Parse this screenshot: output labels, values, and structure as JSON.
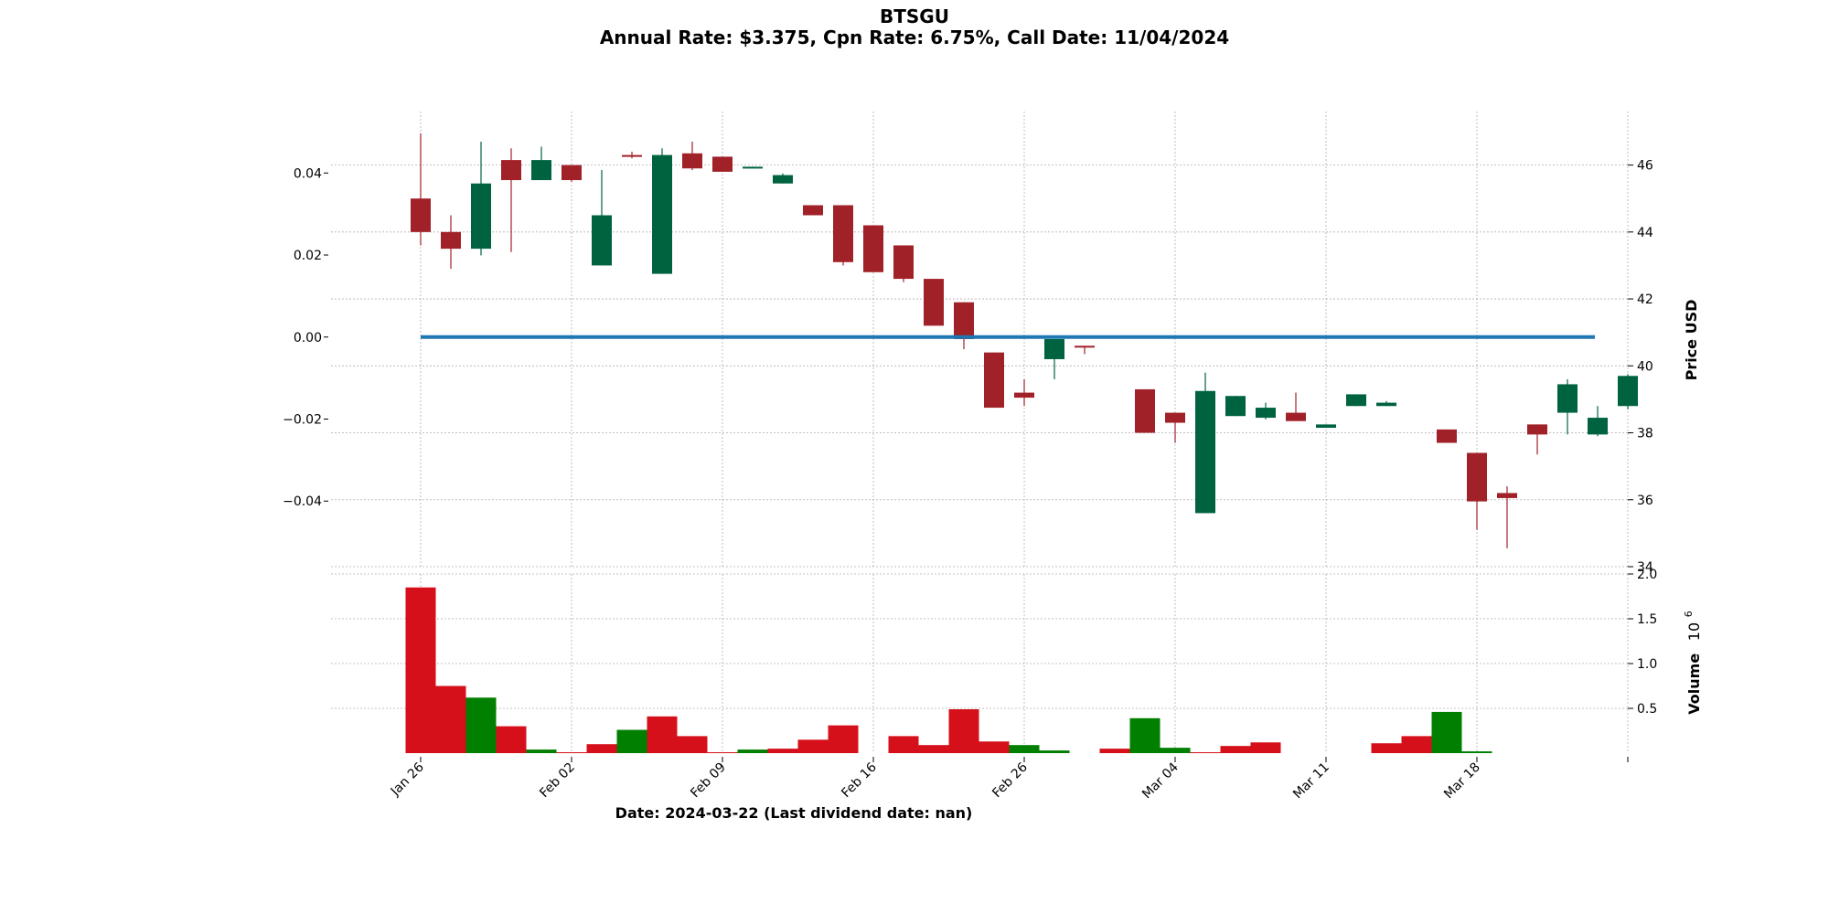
{
  "chart_data": {
    "type": "candlestick",
    "title": "BTSGU",
    "subtitle": "Annual Rate: $3.375, Cpn Rate: 6.75%, Call Date: 11/04/2024",
    "xlabel": "Date: 2024-03-22   (Last dividend date: nan)",
    "ylabel_price": "Price USD",
    "ylabel_volume": "Volume  $10^6$",
    "volume_axis_label": "Volume",
    "volume_axis_multiplier": "10",
    "volume_axis_exponent": "6",
    "left_axis": {
      "ylim": [
        -0.056,
        0.055
      ],
      "ticks": [
        "0.04",
        "0.02",
        "0.00",
        "−0.02",
        "−0.04"
      ],
      "tick_values": [
        0.04,
        0.02,
        0.0,
        -0.02,
        -0.04
      ]
    },
    "price_axis": {
      "ylim": [
        34.0,
        47.6
      ],
      "ticks": [
        "46",
        "44",
        "42",
        "40",
        "38",
        "36",
        "34"
      ],
      "tick_values": [
        46,
        44,
        42,
        40,
        38,
        36,
        34
      ]
    },
    "volume_axis": {
      "ylim": [
        0,
        2.0
      ],
      "ticks": [
        "0.5",
        "1.0",
        "1.5",
        "2.0"
      ],
      "tick_values": [
        0.5,
        1.0,
        1.5,
        2.0
      ],
      "unit": "millions"
    },
    "x_ticks": [
      {
        "label": "Jan 26",
        "index": 0
      },
      {
        "label": "Feb 02",
        "index": 5
      },
      {
        "label": "Feb 09",
        "index": 10
      },
      {
        "label": "Feb 16",
        "index": 15
      },
      {
        "label": "Feb 26",
        "index": 20
      },
      {
        "label": "Mar 04",
        "index": 25
      },
      {
        "label": "Mar 11",
        "index": 30
      },
      {
        "label": "Mar 18",
        "index": 35
      },
      {
        "label": "",
        "index": 40
      }
    ],
    "zero_line_value": 0.0,
    "colors": {
      "up": "#006340",
      "down": "#a02128",
      "volume_up": "#007f00",
      "volume_down": "#d5101a",
      "zero_line": "#1f77b4",
      "grid": "#b0b0b0"
    },
    "candles": [
      {
        "i": 0,
        "open": 45.0,
        "high": 46.95,
        "low": 43.6,
        "close": 44.0
      },
      {
        "i": 1,
        "open": 44.0,
        "high": 44.5,
        "low": 42.9,
        "close": 43.5
      },
      {
        "i": 2,
        "open": 43.5,
        "high": 46.7,
        "low": 43.3,
        "close": 45.45
      },
      {
        "i": 3,
        "open": 46.15,
        "high": 46.5,
        "low": 43.4,
        "close": 45.55
      },
      {
        "i": 4,
        "open": 45.55,
        "high": 46.55,
        "low": 45.55,
        "close": 46.15
      },
      {
        "i": 5,
        "open": 46.0,
        "high": 46.0,
        "low": 45.5,
        "close": 45.55
      },
      {
        "i": 6,
        "open": 43.0,
        "high": 45.85,
        "low": 43.0,
        "close": 44.5
      },
      {
        "i": 7,
        "open": 46.3,
        "high": 46.4,
        "low": 46.2,
        "close": 46.25
      },
      {
        "i": 8,
        "open": 42.75,
        "high": 46.5,
        "low": 42.75,
        "close": 46.3
      },
      {
        "i": 9,
        "open": 46.35,
        "high": 46.7,
        "low": 45.85,
        "close": 45.9
      },
      {
        "i": 10,
        "open": 46.25,
        "high": 46.25,
        "low": 45.8,
        "close": 45.8
      },
      {
        "i": 11,
        "open": 45.95,
        "high": 45.95,
        "low": 45.9,
        "close": 45.95
      },
      {
        "i": 12,
        "open": 45.45,
        "high": 45.75,
        "low": 45.45,
        "close": 45.7
      },
      {
        "i": 13,
        "open": 44.8,
        "high": 44.8,
        "low": 44.5,
        "close": 44.5
      },
      {
        "i": 14,
        "open": 44.8,
        "high": 44.8,
        "low": 43.0,
        "close": 43.1
      },
      {
        "i": 15,
        "open": 44.2,
        "high": 44.2,
        "low": 42.8,
        "close": 42.8
      },
      {
        "i": 16,
        "open": 43.6,
        "high": 43.6,
        "low": 42.5,
        "close": 42.6
      },
      {
        "i": 17,
        "open": 42.6,
        "high": 42.6,
        "low": 41.2,
        "close": 41.2
      },
      {
        "i": 18,
        "open": 41.9,
        "high": 41.9,
        "low": 40.5,
        "close": 40.8
      },
      {
        "i": 19,
        "open": 40.4,
        "high": 40.4,
        "low": 38.75,
        "close": 38.75
      },
      {
        "i": 20,
        "open": 39.2,
        "high": 39.6,
        "low": 38.8,
        "close": 39.05
      },
      {
        "i": 21,
        "open": 40.2,
        "high": 40.8,
        "low": 39.6,
        "close": 40.8
      },
      {
        "i": 22,
        "open": 40.6,
        "high": 40.6,
        "low": 40.35,
        "close": 40.55
      },
      {
        "i": 24,
        "open": 39.3,
        "high": 39.3,
        "low": 38.0,
        "close": 38.0
      },
      {
        "i": 25,
        "open": 38.6,
        "high": 38.6,
        "low": 37.7,
        "close": 38.3
      },
      {
        "i": 26,
        "open": 35.6,
        "high": 39.8,
        "low": 35.6,
        "close": 39.25
      },
      {
        "i": 27,
        "open": 38.5,
        "high": 39.1,
        "low": 38.5,
        "close": 39.1
      },
      {
        "i": 28,
        "open": 38.45,
        "high": 38.9,
        "low": 38.4,
        "close": 38.75
      },
      {
        "i": 29,
        "open": 38.6,
        "high": 39.2,
        "low": 38.35,
        "close": 38.35
      },
      {
        "i": 30,
        "open": 38.15,
        "high": 38.25,
        "low": 38.15,
        "close": 38.25
      },
      {
        "i": 31,
        "open": 38.8,
        "high": 39.15,
        "low": 38.8,
        "close": 39.15
      },
      {
        "i": 32,
        "open": 38.8,
        "high": 38.95,
        "low": 38.8,
        "close": 38.9
      },
      {
        "i": 34,
        "open": 38.1,
        "high": 38.1,
        "low": 37.7,
        "close": 37.7
      },
      {
        "i": 35,
        "open": 37.4,
        "high": 37.4,
        "low": 35.1,
        "close": 35.95
      },
      {
        "i": 36,
        "open": 36.2,
        "high": 36.4,
        "low": 34.55,
        "close": 36.05
      },
      {
        "i": 37,
        "open": 38.25,
        "high": 38.25,
        "low": 37.35,
        "close": 37.95
      },
      {
        "i": 38,
        "open": 38.6,
        "high": 39.6,
        "low": 37.95,
        "close": 39.45
      },
      {
        "i": 39,
        "open": 37.95,
        "high": 38.8,
        "low": 37.9,
        "close": 38.45
      },
      {
        "i": 40,
        "open": 38.8,
        "high": 39.75,
        "low": 38.7,
        "close": 39.7
      }
    ],
    "volume": [
      {
        "i": 0,
        "value": 1.85,
        "dir": "down"
      },
      {
        "i": 1,
        "value": 0.75,
        "dir": "down"
      },
      {
        "i": 2,
        "value": 0.62,
        "dir": "up"
      },
      {
        "i": 3,
        "value": 0.3,
        "dir": "down"
      },
      {
        "i": 4,
        "value": 0.04,
        "dir": "up"
      },
      {
        "i": 5,
        "value": 0.01,
        "dir": "down"
      },
      {
        "i": 6,
        "value": 0.1,
        "dir": "down"
      },
      {
        "i": 7,
        "value": 0.26,
        "dir": "up"
      },
      {
        "i": 8,
        "value": 0.41,
        "dir": "down"
      },
      {
        "i": 9,
        "value": 0.19,
        "dir": "down"
      },
      {
        "i": 10,
        "value": 0.01,
        "dir": "down"
      },
      {
        "i": 11,
        "value": 0.04,
        "dir": "up"
      },
      {
        "i": 12,
        "value": 0.05,
        "dir": "down"
      },
      {
        "i": 13,
        "value": 0.15,
        "dir": "down"
      },
      {
        "i": 14,
        "value": 0.31,
        "dir": "down"
      },
      {
        "i": 16,
        "value": 0.19,
        "dir": "down"
      },
      {
        "i": 17,
        "value": 0.09,
        "dir": "down"
      },
      {
        "i": 18,
        "value": 0.49,
        "dir": "down"
      },
      {
        "i": 19,
        "value": 0.13,
        "dir": "down"
      },
      {
        "i": 20,
        "value": 0.09,
        "dir": "up"
      },
      {
        "i": 21,
        "value": 0.03,
        "dir": "up"
      },
      {
        "i": 23,
        "value": 0.05,
        "dir": "down"
      },
      {
        "i": 24,
        "value": 0.39,
        "dir": "up"
      },
      {
        "i": 25,
        "value": 0.06,
        "dir": "up"
      },
      {
        "i": 26,
        "value": 0.01,
        "dir": "down"
      },
      {
        "i": 27,
        "value": 0.08,
        "dir": "down"
      },
      {
        "i": 28,
        "value": 0.12,
        "dir": "down"
      },
      {
        "i": 32,
        "value": 0.11,
        "dir": "down"
      },
      {
        "i": 33,
        "value": 0.19,
        "dir": "down"
      },
      {
        "i": 34,
        "value": 0.46,
        "dir": "up"
      },
      {
        "i": 35,
        "value": 0.02,
        "dir": "up"
      }
    ]
  }
}
